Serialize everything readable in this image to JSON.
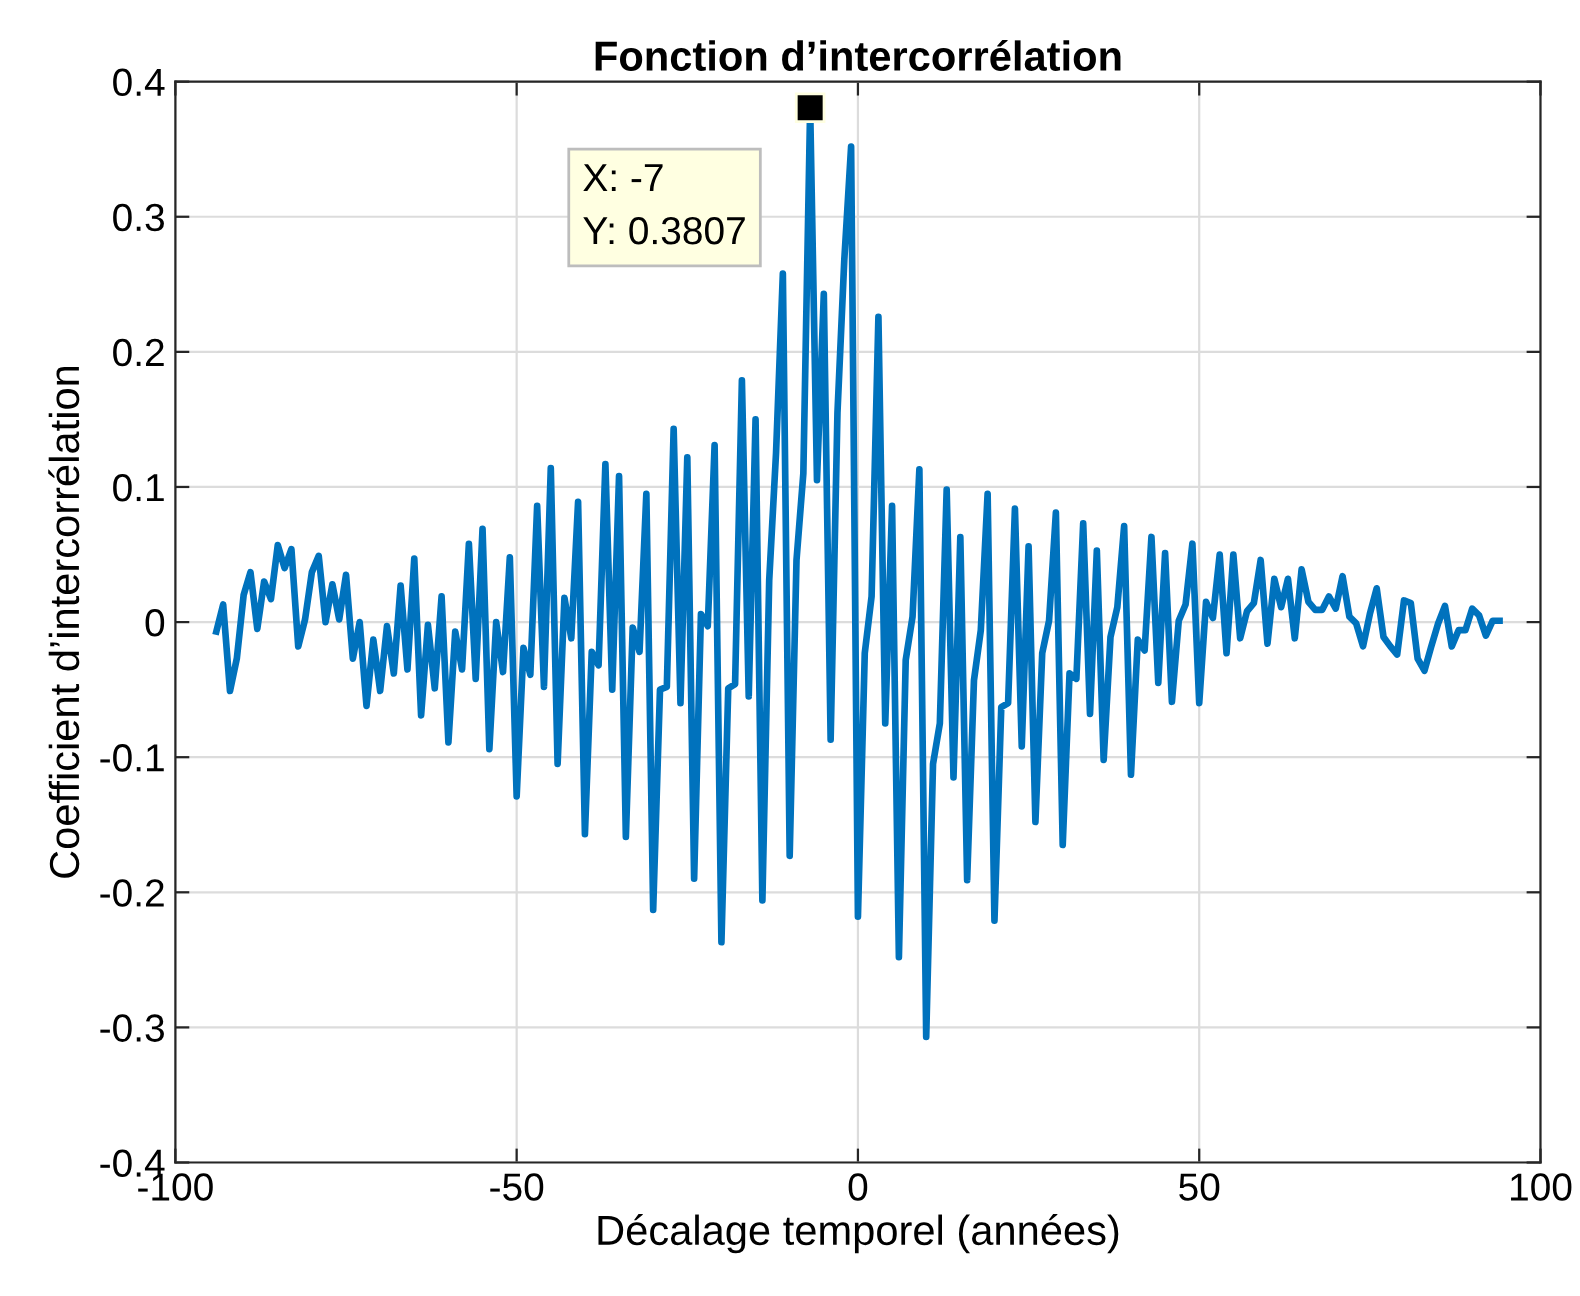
{
  "chart_data": {
    "type": "line",
    "title": "Fonction d’intercorrélation",
    "xlabel": "Décalage temporel (années)",
    "ylabel": "Coefficient d’intercorrélation",
    "x": [
      -94,
      -93,
      -92,
      -91,
      -90,
      -89,
      -88,
      -87,
      -86,
      -85,
      -84,
      -83,
      -82,
      -81,
      -80,
      -79,
      -78,
      -77,
      -76,
      -75,
      -74,
      -73,
      -72,
      -71,
      -70,
      -69,
      -68,
      -67,
      -66,
      -65,
      -64,
      -63,
      -62,
      -61,
      -60,
      -59,
      -58,
      -57,
      -56,
      -55,
      -54,
      -53,
      -52,
      -51,
      -50,
      -49,
      -48,
      -47,
      -46,
      -45,
      -44,
      -43,
      -42,
      -41,
      -40,
      -39,
      -38,
      -37,
      -36,
      -35,
      -34,
      -33,
      -32,
      -31,
      -30,
      -29,
      -28,
      -27,
      -26,
      -25,
      -24,
      -23,
      -22,
      -21,
      -20,
      -19,
      -18,
      -17,
      -16,
      -15,
      -14,
      -13,
      -12,
      -11,
      -10,
      -9,
      -8,
      -7,
      -6,
      -5,
      -4,
      -3,
      -2,
      -1,
      0,
      1,
      2,
      3,
      4,
      5,
      6,
      7,
      8,
      9,
      10,
      11,
      12,
      13,
      14,
      15,
      16,
      17,
      18,
      19,
      20,
      21,
      22,
      23,
      24,
      25,
      26,
      27,
      28,
      29,
      30,
      31,
      32,
      33,
      34,
      35,
      36,
      37,
      38,
      39,
      40,
      41,
      42,
      43,
      44,
      45,
      46,
      47,
      48,
      49,
      50,
      51,
      52,
      53,
      54,
      55,
      56,
      57,
      58,
      59,
      60,
      61,
      62,
      63,
      64,
      65,
      66,
      67,
      68,
      69,
      70,
      71,
      72,
      73,
      74,
      75,
      76,
      77,
      78,
      79,
      80,
      81,
      82,
      83,
      84,
      85,
      86,
      87,
      88,
      89,
      90,
      91,
      92,
      93,
      94
    ],
    "series": [
      {
        "color": "#0072bd",
        "values": [
          -0.007,
          0.013,
          -0.051,
          -0.027,
          0.02,
          0.037,
          -0.005,
          0.03,
          0.017,
          0.057,
          0.04,
          0.054,
          -0.018,
          0.002,
          0.037,
          0.049,
          0.0,
          0.028,
          0.002,
          0.035,
          -0.027,
          0.0,
          -0.062,
          -0.013,
          -0.051,
          -0.003,
          -0.038,
          0.027,
          -0.035,
          0.047,
          -0.069,
          -0.002,
          -0.049,
          0.019,
          -0.089,
          -0.007,
          -0.035,
          0.058,
          -0.042,
          0.069,
          -0.094,
          0.0,
          -0.037,
          0.048,
          -0.129,
          -0.019,
          -0.039,
          0.086,
          -0.048,
          0.114,
          -0.105,
          0.018,
          -0.012,
          0.089,
          -0.157,
          -0.022,
          -0.032,
          0.117,
          -0.05,
          0.108,
          -0.159,
          -0.004,
          -0.022,
          0.095,
          -0.213,
          -0.05,
          -0.048,
          0.143,
          -0.06,
          0.122,
          -0.19,
          0.006,
          -0.003,
          0.131,
          -0.237,
          -0.049,
          -0.046,
          0.179,
          -0.055,
          0.15,
          -0.206,
          0.031,
          0.125,
          0.258,
          -0.173,
          0.046,
          0.11,
          0.3807,
          0.105,
          0.243,
          -0.087,
          0.155,
          0.268,
          0.352,
          -0.218,
          -0.023,
          0.019,
          0.226,
          -0.075,
          0.086,
          -0.248,
          -0.028,
          0.004,
          0.113,
          -0.307,
          -0.105,
          -0.075,
          0.098,
          -0.115,
          0.063,
          -0.191,
          -0.043,
          -0.006,
          0.095,
          -0.221,
          -0.063,
          -0.06,
          0.084,
          -0.092,
          0.056,
          -0.148,
          -0.023,
          0.001,
          0.081,
          -0.165,
          -0.038,
          -0.042,
          0.073,
          -0.068,
          0.053,
          -0.102,
          -0.011,
          0.011,
          0.071,
          -0.113,
          -0.013,
          -0.021,
          0.063,
          -0.045,
          0.051,
          -0.059,
          0.001,
          0.013,
          0.058,
          -0.06,
          0.015,
          0.003,
          0.05,
          -0.023,
          0.05,
          -0.012,
          0.008,
          0.014,
          0.046,
          -0.016,
          0.032,
          0.011,
          0.032,
          -0.012,
          0.039,
          0.015,
          0.009,
          0.009,
          0.019,
          0.01,
          0.034,
          0.004,
          -0.001,
          -0.018,
          0.006,
          0.025,
          -0.011,
          -0.018,
          -0.024,
          0.016,
          0.014,
          -0.027,
          -0.036,
          -0.018,
          -0.001,
          0.012,
          -0.018,
          -0.006,
          -0.006,
          0.01,
          0.005,
          -0.01,
          0.001,
          0.001
        ]
      }
    ],
    "annotations": [
      {
        "text": "X: -7\nY: 0.3807",
        "x": -7,
        "y": 0.3807
      }
    ],
    "xlim": [
      -100,
      100
    ],
    "xticks": [
      -100,
      -50,
      0,
      50,
      100
    ],
    "ylim": [
      -0.4,
      0.4
    ],
    "yticks": [
      -0.4,
      -0.3,
      -0.2,
      -0.1,
      0,
      0.1,
      0.2,
      0.3,
      0.4
    ],
    "grid": true,
    "legend": false,
    "marker": "none",
    "line_style": "solid"
  }
}
